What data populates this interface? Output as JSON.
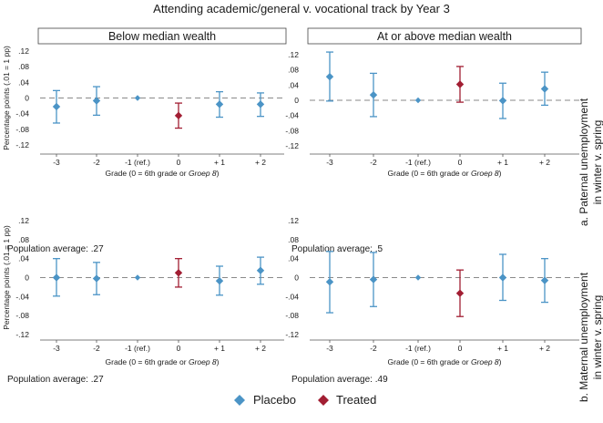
{
  "figure_title": "Attending academic/general v. vocational track by Year 3",
  "chart_data": [
    {
      "type": "scatter",
      "title": "Below median wealth",
      "row_label": "a. Paternal unemployment in winter v. spring",
      "categories": [
        "-3",
        "-2",
        "-1 (ref.)",
        "0",
        "+ 1",
        "+ 2"
      ],
      "ylabel": "Percentage points (.01 = 1 pp)",
      "xlabel": "Grade (0 = 6th grade or ",
      "xlabel_italic": "Groep 8",
      "xlabel_close": ")",
      "ylim": [
        -0.13,
        0.13
      ],
      "yticks": [
        ".12",
        ".08",
        ".04",
        "0",
        "-.04",
        "-.08",
        "-.12"
      ],
      "ytick_values": [
        0.12,
        0.08,
        0.04,
        0,
        -0.04,
        -0.08,
        -0.12
      ],
      "series": [
        {
          "name": "Placebo",
          "points": [
            {
              "cat": 0,
              "y": -0.022,
              "lo": -0.064,
              "hi": 0.019
            },
            {
              "cat": 1,
              "y": -0.007,
              "lo": -0.044,
              "hi": 0.029
            },
            {
              "cat": 2,
              "y": 0.0,
              "lo": null,
              "hi": null
            },
            {
              "cat": 4,
              "y": -0.016,
              "lo": -0.049,
              "hi": 0.016
            },
            {
              "cat": 5,
              "y": -0.016,
              "lo": -0.047,
              "hi": 0.013
            }
          ]
        },
        {
          "name": "Treated",
          "points": [
            {
              "cat": 3,
              "y": -0.045,
              "lo": -0.077,
              "hi": -0.013
            }
          ]
        }
      ],
      "population_label": "Population average: .27"
    },
    {
      "type": "scatter",
      "title": "At or above median wealth",
      "row_label": "a. Paternal unemployment in winter v. spring",
      "categories": [
        "-3",
        "-2",
        "-1 (ref.)",
        "0",
        "+ 1",
        "+ 2"
      ],
      "ylabel": "",
      "xlabel": "Grade (0 = 6th grade or ",
      "xlabel_italic": "Groep 8",
      "xlabel_close": ")",
      "ylim": [
        -0.13,
        0.13
      ],
      "yticks": [
        ".12",
        ".08",
        ".04",
        "0",
        "-.04",
        "-.08",
        "-.12"
      ],
      "ytick_values": [
        0.12,
        0.08,
        0.04,
        0,
        -0.04,
        -0.08,
        -0.12
      ],
      "series": [
        {
          "name": "Placebo",
          "points": [
            {
              "cat": 0,
              "y": 0.062,
              "lo": -0.002,
              "hi": 0.127
            },
            {
              "cat": 1,
              "y": 0.014,
              "lo": -0.043,
              "hi": 0.071
            },
            {
              "cat": 2,
              "y": 0.0,
              "lo": null,
              "hi": null
            },
            {
              "cat": 4,
              "y": -0.001,
              "lo": -0.048,
              "hi": 0.045
            },
            {
              "cat": 5,
              "y": 0.03,
              "lo": -0.013,
              "hi": 0.074
            }
          ]
        },
        {
          "name": "Treated",
          "points": [
            {
              "cat": 3,
              "y": 0.042,
              "lo": -0.005,
              "hi": 0.089
            }
          ]
        }
      ],
      "population_label": "Population average: .5"
    },
    {
      "type": "scatter",
      "title": "",
      "row_label": "b. Maternal unemployment in winter v. spring",
      "categories": [
        "-3",
        "-2",
        "-1 (ref.)",
        "0",
        "+ 1",
        "+ 2"
      ],
      "ylabel": "Percentage points (.01 = 1 pp)",
      "xlabel": "Grade (0 = 6th grade or ",
      "xlabel_italic": "Groep 8",
      "xlabel_close": ")",
      "ylim": [
        -0.13,
        0.13
      ],
      "yticks": [
        ".12",
        ".08",
        ".04",
        "0",
        "-.04",
        "-.08",
        "-.12"
      ],
      "ytick_values": [
        0.12,
        0.08,
        0.04,
        0,
        -0.04,
        -0.08,
        -0.12
      ],
      "series": [
        {
          "name": "Placebo",
          "points": [
            {
              "cat": 0,
              "y": 0.0,
              "lo": -0.039,
              "hi": 0.04
            },
            {
              "cat": 1,
              "y": -0.002,
              "lo": -0.036,
              "hi": 0.032
            },
            {
              "cat": 2,
              "y": 0.0,
              "lo": null,
              "hi": null
            },
            {
              "cat": 4,
              "y": -0.007,
              "lo": -0.037,
              "hi": 0.024
            },
            {
              "cat": 5,
              "y": 0.015,
              "lo": -0.014,
              "hi": 0.043
            }
          ]
        },
        {
          "name": "Treated",
          "points": [
            {
              "cat": 3,
              "y": 0.01,
              "lo": -0.02,
              "hi": 0.04
            }
          ]
        }
      ],
      "population_label": "Population average: .27"
    },
    {
      "type": "scatter",
      "title": "",
      "row_label": "b. Maternal unemployment in winter v. spring",
      "categories": [
        "-3",
        "-2",
        "-1 (ref.)",
        "0",
        "+ 1",
        "+ 2"
      ],
      "ylabel": "",
      "xlabel": "Grade (0 = 6th grade or ",
      "xlabel_italic": "Groep 8",
      "xlabel_close": ")",
      "ylim": [
        -0.13,
        0.13
      ],
      "yticks": [
        ".12",
        ".08",
        ".04",
        "0",
        "-.04",
        "-.08",
        "-.12"
      ],
      "ytick_values": [
        0.12,
        0.08,
        0.04,
        0,
        -0.04,
        -0.08,
        -0.12
      ],
      "series": [
        {
          "name": "Placebo",
          "points": [
            {
              "cat": 0,
              "y": -0.009,
              "lo": -0.074,
              "hi": 0.055
            },
            {
              "cat": 1,
              "y": -0.004,
              "lo": -0.061,
              "hi": 0.053
            },
            {
              "cat": 2,
              "y": 0.0,
              "lo": null,
              "hi": null
            },
            {
              "cat": 4,
              "y": 0.0,
              "lo": -0.048,
              "hi": 0.049
            },
            {
              "cat": 5,
              "y": -0.006,
              "lo": -0.052,
              "hi": 0.04
            }
          ]
        },
        {
          "name": "Treated",
          "points": [
            {
              "cat": 3,
              "y": -0.033,
              "lo": -0.082,
              "hi": 0.016
            }
          ]
        }
      ],
      "population_label": "Population average: .49"
    }
  ],
  "legend": [
    {
      "label": "Placebo",
      "color": "#4b94c6",
      "marker": "diamond"
    },
    {
      "label": "Treated",
      "color": "#a21e33",
      "marker": "diamond"
    }
  ],
  "colors": {
    "placebo": "#4b94c6",
    "treated": "#a21e33",
    "zero_line": "#8a8a8a",
    "axis": "#555555"
  }
}
